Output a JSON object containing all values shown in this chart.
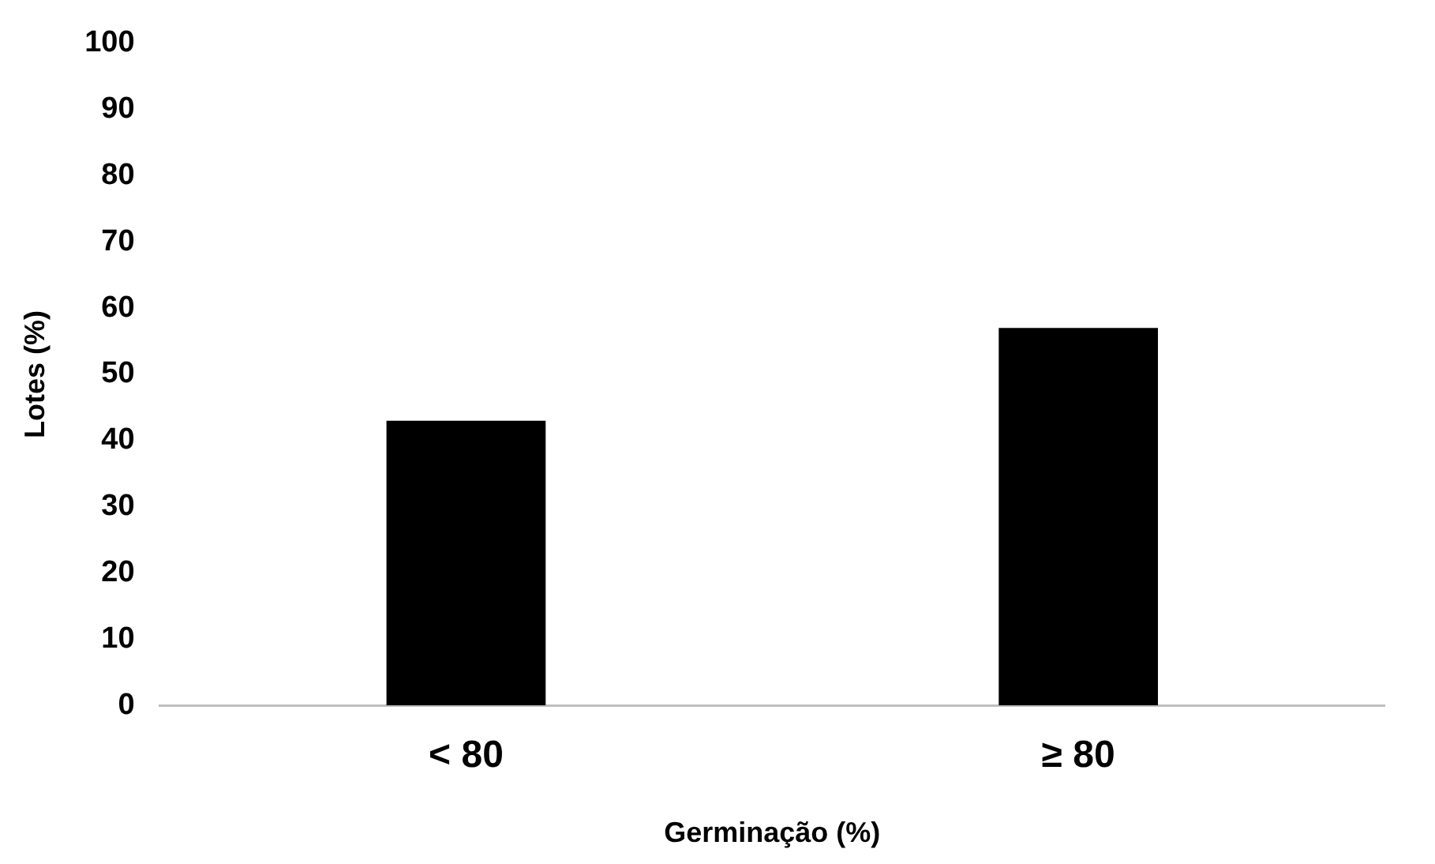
{
  "chart_data": {
    "type": "bar",
    "categories": [
      "< 80",
      "≥ 80"
    ],
    "values": [
      43,
      57
    ],
    "color": "#000000",
    "ylim": [
      0,
      100
    ],
    "yticks": [
      0,
      10,
      20,
      30,
      40,
      50,
      60,
      70,
      80,
      90,
      100
    ],
    "grid": false,
    "legend": false,
    "xlabel": "Germinação (%)",
    "ylabel": "Lotes (%)"
  }
}
